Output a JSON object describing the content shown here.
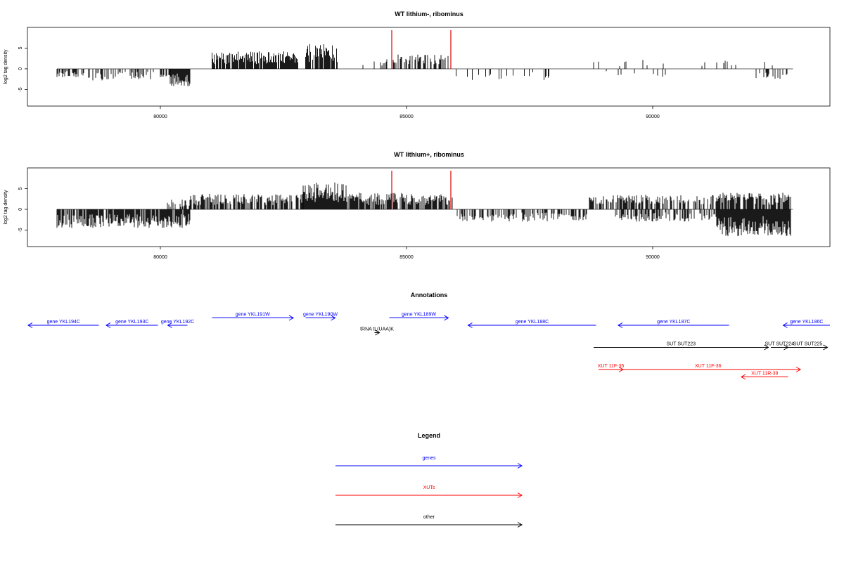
{
  "chart_data": [
    {
      "type": "bar",
      "title": "WT lithium-, ribominus",
      "ylabel": "log2 tag density",
      "xlabel": "",
      "xlim": [
        77300,
        93600
      ],
      "ylim": [
        -9,
        10
      ],
      "x_ticks": [
        80000,
        85000,
        90000
      ],
      "y_ticks": [
        -5,
        0,
        5
      ],
      "markers": [
        84700,
        85900
      ],
      "marker_color": "#e00000",
      "regions": [
        {
          "from": 77900,
          "to": 78400,
          "dir": -1,
          "amp": 2.2,
          "density": 0.5
        },
        {
          "from": 78400,
          "to": 79300,
          "dir": -1,
          "amp": 2.8,
          "density": 0.35
        },
        {
          "from": 79300,
          "to": 79800,
          "dir": -1,
          "amp": 2.5,
          "density": 0.3
        },
        {
          "from": 79800,
          "to": 80200,
          "dir": -1,
          "amp": 2.0,
          "density": 0.4
        },
        {
          "from": 80200,
          "to": 80600,
          "dir": -1,
          "amp": 4.2,
          "density": 1.0
        },
        {
          "from": 81050,
          "to": 82800,
          "dir": 1,
          "amp": 4.2,
          "density": 0.9
        },
        {
          "from": 82950,
          "to": 83600,
          "dir": 1,
          "amp": 6.0,
          "density": 0.9
        },
        {
          "from": 84100,
          "to": 84600,
          "dir": 1,
          "amp": 2.5,
          "density": 0.15
        },
        {
          "from": 84700,
          "to": 85900,
          "dir": 1,
          "amp": 3.5,
          "density": 0.45
        },
        {
          "from": 85950,
          "to": 88300,
          "dir": -1,
          "amp": 2.8,
          "density": 0.12
        },
        {
          "from": 88700,
          "to": 90500,
          "dir": 1,
          "amp": 2.5,
          "density": 0.08
        },
        {
          "from": 89000,
          "to": 90300,
          "dir": -1,
          "amp": 2.0,
          "density": 0.08
        },
        {
          "from": 91000,
          "to": 91800,
          "dir": 1,
          "amp": 2.0,
          "density": 0.1
        },
        {
          "from": 92100,
          "to": 92800,
          "dir": -1,
          "amp": 2.5,
          "density": 0.25
        },
        {
          "from": 92100,
          "to": 92600,
          "dir": 1,
          "amp": 2.0,
          "density": 0.1
        }
      ]
    },
    {
      "type": "bar",
      "title": "WT lithium+, ribominus",
      "ylabel": "log2 tag density",
      "xlabel": "",
      "xlim": [
        77300,
        93600
      ],
      "ylim": [
        -9,
        10
      ],
      "x_ticks": [
        80000,
        85000,
        90000
      ],
      "y_ticks": [
        -5,
        0,
        5
      ],
      "markers": [
        84700,
        85900
      ],
      "marker_color": "#e00000",
      "regions": [
        {
          "from": 77900,
          "to": 80600,
          "dir": -1,
          "amp": 4.5,
          "density": 0.85
        },
        {
          "from": 80100,
          "to": 80600,
          "dir": 1,
          "amp": 2.5,
          "density": 0.5
        },
        {
          "from": 80600,
          "to": 82900,
          "dir": 1,
          "amp": 3.8,
          "density": 0.7
        },
        {
          "from": 82900,
          "to": 83800,
          "dir": 1,
          "amp": 6.5,
          "density": 1.0
        },
        {
          "from": 83800,
          "to": 85950,
          "dir": 1,
          "amp": 4.0,
          "density": 0.75
        },
        {
          "from": 86000,
          "to": 88700,
          "dir": -1,
          "amp": 3.0,
          "density": 0.55
        },
        {
          "from": 88700,
          "to": 91300,
          "dir": 1,
          "amp": 3.5,
          "density": 0.6
        },
        {
          "from": 89200,
          "to": 91300,
          "dir": -1,
          "amp": 3.0,
          "density": 0.5
        },
        {
          "from": 91300,
          "to": 92800,
          "dir": -1,
          "amp": 6.5,
          "density": 1.0
        },
        {
          "from": 91300,
          "to": 92800,
          "dir": 1,
          "amp": 4.0,
          "density": 0.7
        }
      ]
    }
  ],
  "annotations": {
    "title": "Annotations",
    "features": [
      {
        "label": "gene YKL194C",
        "from": 77300,
        "to": 78750,
        "strand": "-",
        "row": 0,
        "type": "gene"
      },
      {
        "label": "gene YKL193C",
        "from": 78900,
        "to": 79950,
        "strand": "-",
        "row": 0,
        "type": "gene"
      },
      {
        "label": "gene YKL192C",
        "from": 80150,
        "to": 80550,
        "strand": "-",
        "row": 0,
        "type": "gene"
      },
      {
        "label": "gene YKL191W",
        "from": 81050,
        "to": 82700,
        "strand": "+",
        "row": -1,
        "type": "gene"
      },
      {
        "label": "gene YKL190W",
        "from": 82950,
        "to": 83550,
        "strand": "+",
        "row": -1,
        "type": "gene"
      },
      {
        "label": "tRNA tL(UAA)K",
        "from": 84350,
        "to": 84450,
        "strand": "+",
        "row": 1,
        "type": "other"
      },
      {
        "label": "gene YKL189W",
        "from": 84650,
        "to": 85850,
        "strand": "+",
        "row": -1,
        "type": "gene"
      },
      {
        "label": "gene YKL188C",
        "from": 86250,
        "to": 88850,
        "strand": "-",
        "row": 0,
        "type": "gene"
      },
      {
        "label": "gene YKL187C",
        "from": 89300,
        "to": 91550,
        "strand": "-",
        "row": 0,
        "type": "gene"
      },
      {
        "label": "gene YKL186C",
        "from": 92650,
        "to": 93600,
        "strand": "-",
        "row": 0,
        "type": "gene"
      },
      {
        "label": "SUT SUT223",
        "from": 88800,
        "to": 92350,
        "strand": "+",
        "row": 3,
        "type": "other"
      },
      {
        "label": "SUT SUT224",
        "from": 92400,
        "to": 92750,
        "strand": "+",
        "row": 3,
        "type": "other"
      },
      {
        "label": "SUT SUT225",
        "from": 92750,
        "to": 93550,
        "strand": "+",
        "row": 3,
        "type": "other"
      },
      {
        "label": "XUT 11F-35",
        "from": 88900,
        "to": 89400,
        "strand": "+",
        "row": 6,
        "type": "xut"
      },
      {
        "label": "XUT 11F-36",
        "from": 89250,
        "to": 93000,
        "strand": "+",
        "row": 6,
        "type": "xut"
      },
      {
        "label": "XUT 11R-39",
        "from": 91800,
        "to": 92750,
        "strand": "-",
        "row": 7,
        "type": "xut"
      }
    ]
  },
  "legend": {
    "title": "Legend",
    "items": [
      {
        "label": "genes",
        "color": "#0000ff"
      },
      {
        "label": "XUTs",
        "color": "#ff0000"
      },
      {
        "label": "other",
        "color": "#000000"
      }
    ]
  },
  "colors": {
    "gene": "#0000ff",
    "xut": "#ff0000",
    "other": "#000000",
    "marker": "#e00000"
  }
}
